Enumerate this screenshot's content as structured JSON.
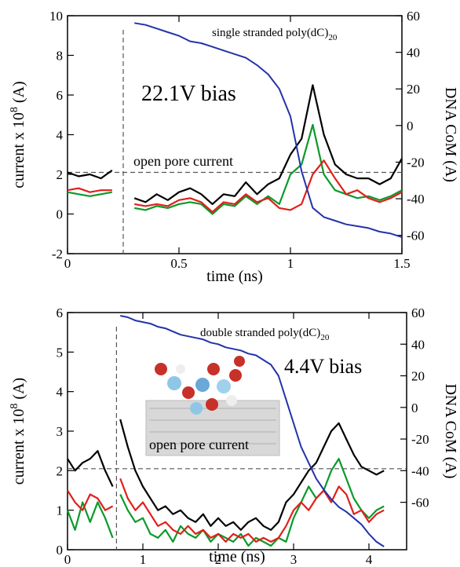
{
  "chart_data": [
    {
      "type": "line",
      "xlabel": "time (ns)",
      "ylabel": "current x 10",
      "ylabel_exponent": "8",
      "ylabel_unit": "(A)",
      "y2label": "DNA CoM (A)",
      "label": "single stranded poly(dC)",
      "label_subscript": "20",
      "bias_label": "22.1V bias",
      "reference_label": "open pore current",
      "reference_y": 2.1,
      "injection_x": 0.25,
      "xlim": [
        0,
        1.5
      ],
      "xticks": [
        0,
        0.5,
        1,
        1.5
      ],
      "ylim": [
        -2,
        10
      ],
      "yticks": [
        -2,
        0,
        2,
        4,
        6,
        8,
        10
      ],
      "y2lim": [
        -70,
        60
      ],
      "y2ticks": [
        -60,
        -40,
        -20,
        0,
        20,
        40,
        60
      ],
      "x": [
        0,
        0.05,
        0.1,
        0.15,
        0.2,
        0.25,
        0.3,
        0.35,
        0.4,
        0.45,
        0.5,
        0.55,
        0.6,
        0.65,
        0.7,
        0.75,
        0.8,
        0.85,
        0.9,
        0.95,
        1.0,
        1.05,
        1.1,
        1.15,
        1.2,
        1.25,
        1.3,
        1.35,
        1.4,
        1.45,
        1.5
      ],
      "series": [
        {
          "color": "#000000",
          "values": [
            2.1,
            1.9,
            2.0,
            1.8,
            2.2,
            null,
            0.8,
            0.6,
            1.0,
            0.7,
            1.1,
            1.3,
            1.0,
            0.5,
            1.0,
            0.9,
            1.6,
            1.0,
            1.5,
            1.8,
            3.0,
            3.8,
            6.5,
            4.0,
            2.5,
            2.0,
            1.8,
            1.8,
            1.5,
            1.8,
            2.8
          ]
        },
        {
          "color": "#0a9a2a",
          "values": [
            1.1,
            1.0,
            0.9,
            1.0,
            1.1,
            null,
            0.3,
            0.2,
            0.4,
            0.3,
            0.5,
            0.6,
            0.5,
            0.0,
            0.5,
            0.4,
            0.9,
            0.5,
            0.9,
            0.5,
            2.0,
            2.5,
            4.5,
            2.0,
            1.2,
            1.0,
            0.8,
            0.9,
            0.7,
            0.9,
            1.2
          ]
        },
        {
          "color": "#e0201a",
          "values": [
            1.2,
            1.3,
            1.1,
            1.2,
            1.2,
            null,
            0.5,
            0.4,
            0.5,
            0.4,
            0.7,
            0.8,
            0.6,
            0.1,
            0.6,
            0.5,
            1.0,
            0.6,
            0.8,
            0.3,
            0.2,
            0.5,
            2.0,
            2.7,
            1.8,
            1.0,
            1.2,
            0.8,
            0.6,
            0.8,
            1.1
          ]
        },
        {
          "color": "#2233aa",
          "axis": "y2",
          "values": [
            null,
            null,
            null,
            null,
            null,
            null,
            56,
            55,
            53,
            51,
            49,
            46,
            45,
            43,
            41,
            39,
            37,
            33,
            28,
            20,
            5,
            -25,
            -45,
            -50,
            -52,
            -54,
            -55,
            -56,
            -58,
            -59,
            -61
          ]
        }
      ]
    },
    {
      "type": "line",
      "xlabel": "time (ns)",
      "ylabel": "current x 10",
      "ylabel_exponent": "8",
      "ylabel_unit": "(A)",
      "y2label": "DNA CoM (A)",
      "label": "double stranded poly(dC)",
      "label_subscript": "20",
      "bias_label": "4.4V bias",
      "reference_label": "open pore current",
      "reference_y": 2.05,
      "injection_x": 0.65,
      "xlim": [
        0,
        4.5
      ],
      "xticks": [
        0,
        1,
        2,
        3,
        4
      ],
      "ylim": [
        0,
        6
      ],
      "yticks": [
        0,
        1,
        2,
        3,
        4,
        5,
        6
      ],
      "y2lim": [
        -90,
        60
      ],
      "y2ticks": [
        -60,
        -40,
        -20,
        0,
        20,
        40,
        60
      ],
      "x": [
        0,
        0.1,
        0.2,
        0.3,
        0.4,
        0.5,
        0.6,
        0.65,
        0.7,
        0.8,
        0.9,
        1.0,
        1.1,
        1.2,
        1.3,
        1.4,
        1.5,
        1.6,
        1.7,
        1.8,
        1.9,
        2.0,
        2.1,
        2.2,
        2.3,
        2.4,
        2.5,
        2.6,
        2.7,
        2.8,
        2.9,
        3.0,
        3.1,
        3.2,
        3.3,
        3.4,
        3.5,
        3.6,
        3.7,
        3.8,
        3.9,
        4.0,
        4.1,
        4.2
      ],
      "series": [
        {
          "color": "#000000",
          "values": [
            2.3,
            2.0,
            2.2,
            2.3,
            2.5,
            2.0,
            1.6,
            null,
            3.3,
            2.6,
            2.0,
            1.6,
            1.3,
            1.0,
            1.1,
            0.9,
            1.0,
            0.8,
            0.7,
            0.9,
            0.6,
            0.8,
            0.6,
            0.7,
            0.5,
            0.7,
            0.8,
            0.6,
            0.5,
            0.7,
            1.2,
            1.4,
            1.7,
            2.0,
            2.2,
            2.6,
            3.0,
            3.2,
            2.8,
            2.4,
            2.1,
            2.0,
            1.9,
            2.0
          ]
        },
        {
          "color": "#0a9a2a",
          "values": [
            1.0,
            0.5,
            1.2,
            0.7,
            1.2,
            0.8,
            0.3,
            null,
            1.4,
            1.0,
            0.7,
            0.8,
            0.4,
            0.3,
            0.5,
            0.2,
            0.6,
            0.4,
            0.3,
            0.5,
            0.2,
            0.4,
            0.3,
            0.2,
            0.4,
            0.1,
            0.3,
            0.2,
            0.1,
            0.3,
            0.2,
            0.8,
            1.2,
            1.6,
            1.3,
            1.5,
            2.0,
            2.3,
            1.8,
            1.3,
            1.0,
            0.8,
            1.0,
            1.1
          ]
        },
        {
          "color": "#e0201a",
          "values": [
            1.5,
            1.2,
            1.0,
            1.4,
            1.3,
            1.0,
            1.1,
            null,
            1.8,
            1.3,
            1.0,
            1.2,
            0.9,
            0.6,
            0.7,
            0.5,
            0.4,
            0.6,
            0.4,
            0.5,
            0.3,
            0.4,
            0.2,
            0.4,
            0.3,
            0.4,
            0.2,
            0.3,
            0.2,
            0.3,
            0.6,
            1.0,
            1.2,
            1.0,
            1.3,
            1.5,
            1.2,
            1.6,
            1.4,
            0.9,
            1.0,
            0.7,
            0.9,
            1.0
          ]
        },
        {
          "color": "#2233aa",
          "axis": "y2",
          "values": [
            null,
            null,
            null,
            null,
            null,
            null,
            null,
            null,
            58,
            57,
            55,
            54,
            53,
            51,
            50,
            48,
            46,
            45,
            44,
            43,
            41,
            40,
            38,
            37,
            36,
            34,
            33,
            30,
            27,
            20,
            5,
            -10,
            -25,
            -35,
            -45,
            -52,
            -58,
            -63,
            -66,
            -70,
            -74,
            -80,
            -85,
            -88
          ]
        }
      ]
    }
  ]
}
